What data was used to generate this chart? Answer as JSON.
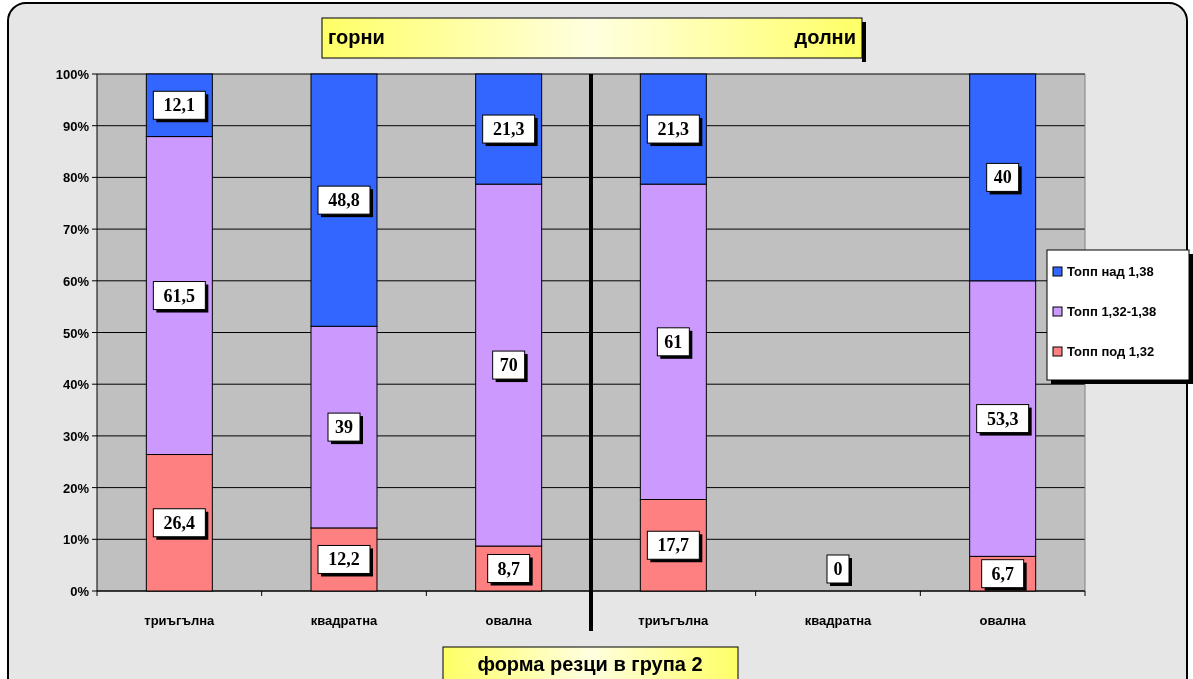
{
  "chart_data": {
    "type": "bar",
    "stacked": true,
    "categories": [
      "триъгълна",
      "квадратна",
      "овална",
      "триъгълна",
      "квадратна",
      "овална"
    ],
    "series": [
      {
        "name": "Топп под 1,32",
        "color": "#ff8080",
        "values": [
          26.4,
          12.2,
          8.7,
          17.7,
          0,
          6.7
        ],
        "value_labels": [
          "26,4",
          "12,2",
          "8,7",
          "17,7",
          "0",
          "6,7"
        ]
      },
      {
        "name": "Топп 1,32-1,38",
        "color": "#cc99ff",
        "values": [
          61.5,
          39,
          70,
          61,
          null,
          53.3
        ],
        "value_labels": [
          "61,5",
          "39",
          "70",
          "61",
          null,
          "53,3"
        ]
      },
      {
        "name": "Топп над 1,38",
        "color": "#3366ff",
        "values": [
          12.1,
          48.8,
          21.3,
          21.3,
          null,
          40
        ],
        "value_labels": [
          "12,1",
          "48,8",
          "21,3",
          "21,3",
          null,
          "40"
        ]
      }
    ],
    "ylim": [
      0,
      100
    ],
    "yticks": [
      {
        "value": 0,
        "label": "0%"
      },
      {
        "value": 10,
        "label": "10%"
      },
      {
        "value": 20,
        "label": "20%"
      },
      {
        "value": 30,
        "label": "30%"
      },
      {
        "value": 40,
        "label": "40%"
      },
      {
        "value": 50,
        "label": "50%"
      },
      {
        "value": 60,
        "label": "60%"
      },
      {
        "value": 70,
        "label": "70%"
      },
      {
        "value": 80,
        "label": "80%"
      },
      {
        "value": 90,
        "label": "90%"
      },
      {
        "value": 100,
        "label": "100%"
      }
    ],
    "grid": "y",
    "legend": "right",
    "xlabel": "форма резци в група 2",
    "annotations": [
      "горни",
      "долни"
    ]
  }
}
